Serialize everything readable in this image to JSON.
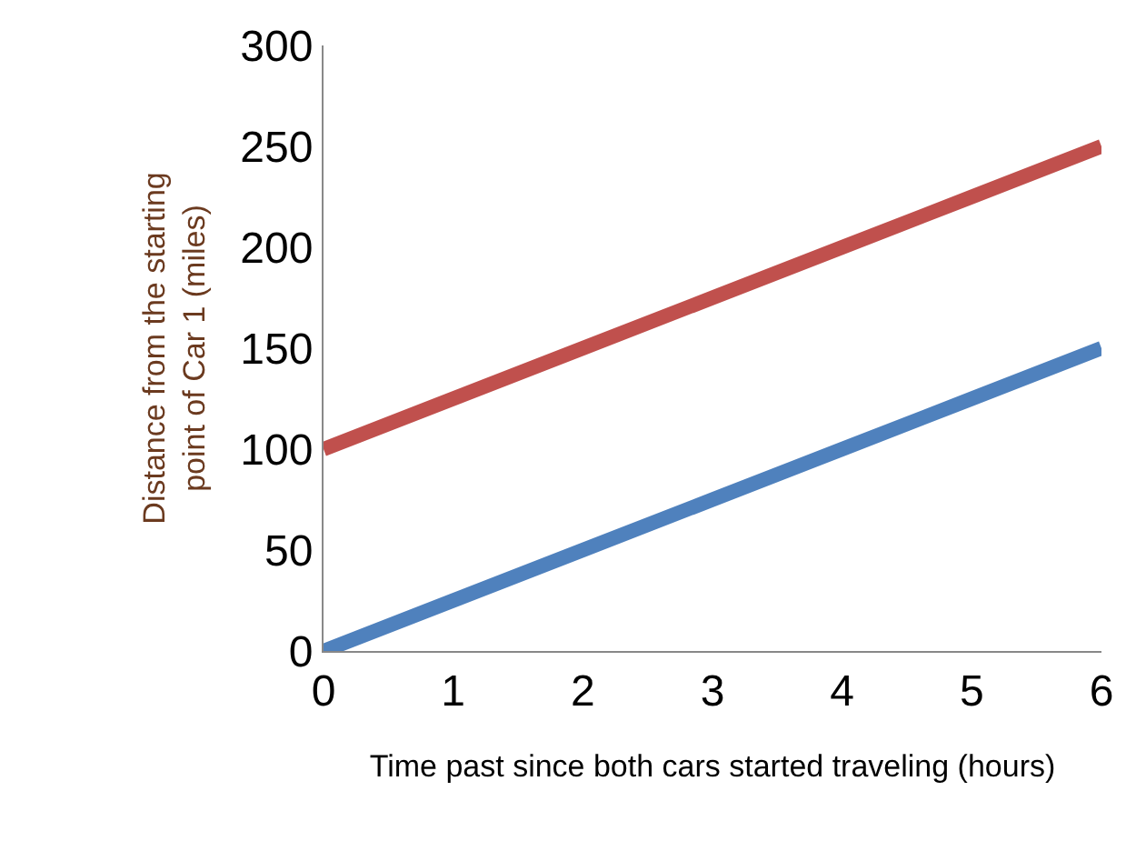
{
  "chart_data": {
    "type": "line",
    "xlabel": "Time past since both cars started traveling (hours)",
    "ylabel": "Distance from the starting\npoint of Car 1 (miles)",
    "x": [
      0,
      1,
      2,
      3,
      4,
      5,
      6
    ],
    "series": [
      {
        "color": "#c0504d",
        "values": [
          100,
          125,
          150,
          175,
          200,
          225,
          250
        ]
      },
      {
        "color": "#4f81bd",
        "values": [
          0,
          25,
          50,
          75,
          100,
          125,
          150
        ]
      }
    ],
    "xlim": [
      0,
      6
    ],
    "ylim": [
      0,
      300
    ],
    "xticks": [
      0,
      1,
      2,
      3,
      4,
      5,
      6
    ],
    "yticks": [
      0,
      50,
      100,
      150,
      200,
      250,
      300
    ],
    "marker": "none",
    "line_style": "solid"
  }
}
